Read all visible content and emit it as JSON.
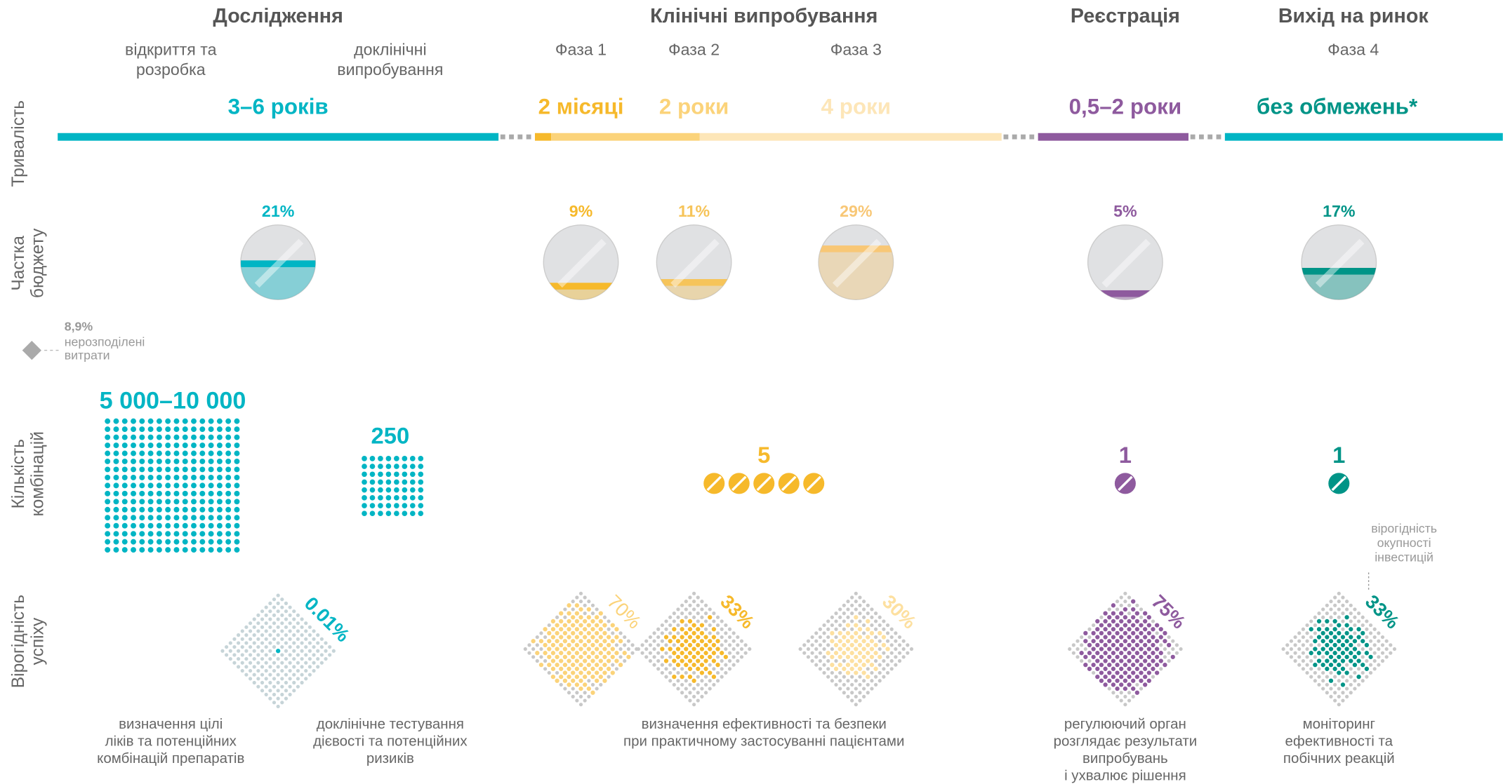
{
  "headers": [
    "Дослідження",
    "Клінічні випробування",
    "Реєстрація",
    "Вихід на ринок"
  ],
  "row_labels": [
    [
      "Тривалість"
    ],
    [
      "Частка",
      "бюджету"
    ],
    [
      "Кількість",
      "комбінацій"
    ],
    [
      "Вірогідність",
      "успіху"
    ]
  ],
  "phases": [
    [
      "відкриття та",
      "розробка"
    ],
    [
      "доклінічні",
      "випробування"
    ],
    [
      "Фаза 1"
    ],
    [
      "Фаза 2"
    ],
    [
      "Фаза 3"
    ],
    [
      "Фаза 4"
    ]
  ],
  "durations": [
    {
      "label": "3–6 років",
      "color": "#00b5c4"
    },
    {
      "label": "2 місяці",
      "color": "#f6b92b"
    },
    {
      "label": "2 роки",
      "color": "#fbd37a"
    },
    {
      "label": "4 роки",
      "color": "#fde6b8"
    },
    {
      "label": "0,5–2 роки",
      "color": "#8e5a9e"
    },
    {
      "label": "без обмежень*",
      "color": "#009487"
    }
  ],
  "budget": [
    {
      "value": 21,
      "label": "21%",
      "color": "#00b5c4"
    },
    {
      "value": 9,
      "label": "9%",
      "color": "#f6b92b"
    },
    {
      "value": 11,
      "label": "11%",
      "color": "#f6c45a"
    },
    {
      "value": 29,
      "label": "29%",
      "color": "#f8c776"
    },
    {
      "value": 5,
      "label": "5%",
      "color": "#8e5a9e"
    },
    {
      "value": 17,
      "label": "17%",
      "color": "#009487"
    }
  ],
  "unallocated": {
    "share": {
      "value": 8.9,
      "label": "8,9%"
    },
    "text": [
      "нерозподілені",
      "витрати"
    ]
  },
  "combinations": [
    {
      "label": "5 000–10 000",
      "color": "#00b5c4"
    },
    {
      "value": 250,
      "color": "#00b5c4"
    },
    {
      "value": 5,
      "color": "#f6b92b"
    },
    {
      "value": 1,
      "color": "#8e5a9e"
    },
    {
      "value": 1,
      "color": "#009487"
    }
  ],
  "success": [
    {
      "value": 0.01,
      "label": "0.01%",
      "color": "#00b5c4"
    },
    {
      "value": 70,
      "label": "70%",
      "color": "#fbd37a"
    },
    {
      "value": 33,
      "label": "33%",
      "color": "#f6b92b"
    },
    {
      "value": 30,
      "label": "30%",
      "color": "#fde0a0"
    },
    {
      "value": 75,
      "label": "75%",
      "color": "#8e5a9e"
    },
    {
      "value": 33,
      "label": "33%",
      "color": "#009487"
    }
  ],
  "roi_note": [
    "вірогідність",
    "окупності",
    "інвестицій"
  ],
  "descriptions": [
    [
      "визначення цілі",
      "ліків та потенційних",
      "комбінацій препаратів"
    ],
    [
      "доклінічне тестування",
      "дієвості та потенційних",
      "ризиків"
    ],
    [
      "визначення ефективності та безпеки",
      "при практичному застосуванні пацієнтами"
    ],
    [
      "регулюючий орган",
      "розглядає результати",
      "випробувань",
      "і ухвалює рішення"
    ],
    [
      "моніторинг",
      "ефективності та",
      "побічних реакцій"
    ]
  ]
}
